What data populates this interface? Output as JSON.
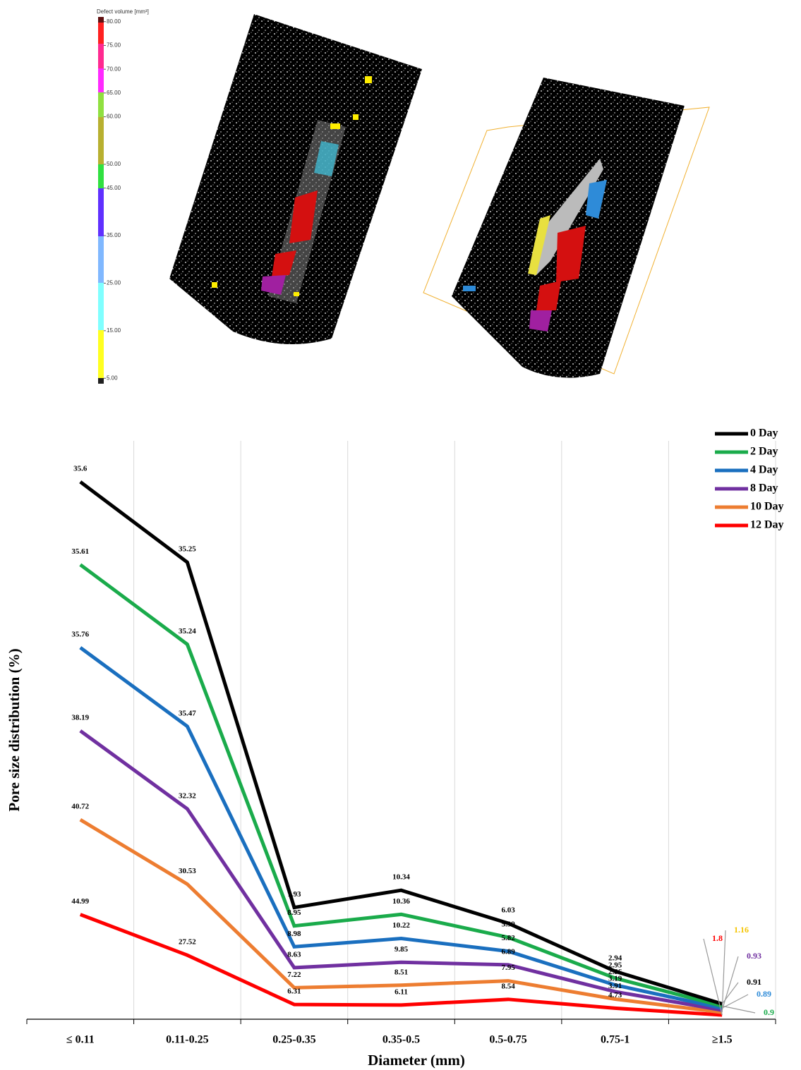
{
  "image_legend": {
    "title": "Defect volume [mm³]",
    "ticks": [
      {
        "value": 80,
        "label": "80.00"
      },
      {
        "value": 75,
        "label": "75.00"
      },
      {
        "value": 70,
        "label": "70.00"
      },
      {
        "value": 65,
        "label": "65.00"
      },
      {
        "value": 60,
        "label": "60.00"
      },
      {
        "value": 50,
        "label": "50.00"
      },
      {
        "value": 45,
        "label": "45.00"
      },
      {
        "value": 35,
        "label": "35.00"
      },
      {
        "value": 25,
        "label": "25.00"
      },
      {
        "value": 15,
        "label": "15.00"
      },
      {
        "value": 5,
        "label": "5.00"
      }
    ],
    "range": [
      4,
      81
    ]
  },
  "chart_data": {
    "type": "line",
    "stacked": true,
    "x_label": "Diameter (mm)",
    "y_label": "Pore size distribution (%)",
    "categories": [
      "≤ 0.11",
      "0.11-0.25",
      "0.25-0.35",
      "0.35-0.5",
      "0.5-0.75",
      "0.75-1",
      "≥1.5"
    ],
    "ylim": [
      0,
      250
    ],
    "grid": true,
    "legend": "top-right",
    "series": [
      {
        "name": "0 Day",
        "color": "#000000",
        "label_color": "#000000",
        "values": [
          35.6,
          35.25,
          7.93,
          10.34,
          6.03,
          2.94,
          0.91
        ]
      },
      {
        "name": "2 Day",
        "color": "#1aab4b",
        "label_color": "#1aab4b",
        "values": [
          35.61,
          35.24,
          8.95,
          10.36,
          5.99,
          2.95,
          0.9
        ]
      },
      {
        "name": "4 Day",
        "color": "#1a6fbf",
        "label_color": "#2e8bd8",
        "values": [
          35.76,
          35.47,
          8.98,
          10.22,
          5.82,
          2.86,
          0.89
        ]
      },
      {
        "name": "8 Day",
        "color": "#7030a0",
        "label_color": "#7030a0",
        "values": [
          38.19,
          32.32,
          8.63,
          9.85,
          6.89,
          3.19,
          0.93
        ]
      },
      {
        "name": "10 Day",
        "color": "#ed7d31",
        "label_color": "#f5c400",
        "values": [
          40.72,
          30.53,
          7.22,
          8.51,
          7.95,
          3.91,
          1.16
        ]
      },
      {
        "name": "12 Day",
        "color": "#ff0000",
        "label_color": "#ff0000",
        "values": [
          44.99,
          27.52,
          6.31,
          6.11,
          8.54,
          4.73,
          1.8
        ]
      }
    ]
  }
}
